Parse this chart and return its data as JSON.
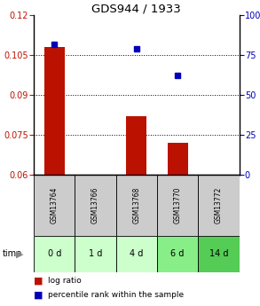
{
  "title": "GDS944 / 1933",
  "samples": [
    "GSM13764",
    "GSM13766",
    "GSM13768",
    "GSM13770",
    "GSM13772"
  ],
  "time_labels": [
    "0 d",
    "1 d",
    "4 d",
    "6 d",
    "14 d"
  ],
  "log_ratio": [
    0.108,
    null,
    0.082,
    0.072,
    null
  ],
  "percentile": [
    82,
    null,
    79,
    62,
    null
  ],
  "ylim_left": [
    0.06,
    0.12
  ],
  "ylim_right": [
    0,
    100
  ],
  "yticks_left": [
    0.06,
    0.075,
    0.09,
    0.105,
    0.12
  ],
  "yticks_right": [
    0,
    25,
    50,
    75,
    100
  ],
  "bar_color": "#bb1100",
  "dot_color": "#0000bb",
  "bar_bottom": 0.06,
  "sample_bg": "#cccccc",
  "time_bg_colors": [
    "#ccffcc",
    "#ccffcc",
    "#ccffcc",
    "#88ee88",
    "#55cc55"
  ],
  "legend_bar_label": "log ratio",
  "legend_dot_label": "percentile rank within the sample",
  "bar_width": 0.5
}
